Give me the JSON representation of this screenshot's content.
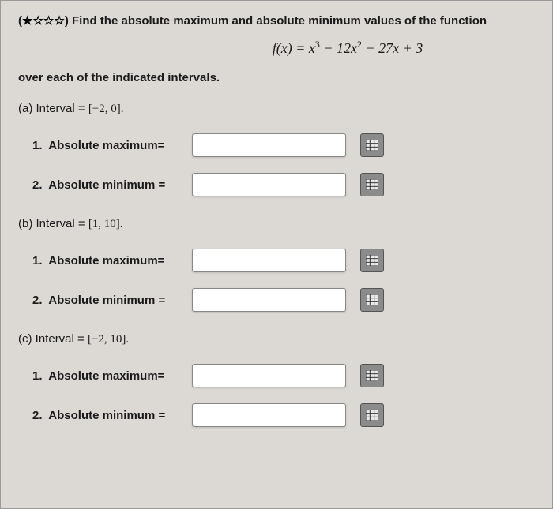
{
  "rating": {
    "filled": 1,
    "empty": 3
  },
  "prompt_text": "Find the absolute maximum and absolute minimum values of the function",
  "equation_html": "f(x) = x<sup>3</sup> − 12x<sup>2</sup> − 27x + 3",
  "instruction": "over each of the indicated intervals.",
  "parts": [
    {
      "letter": "(a)",
      "interval_label": "Interval =",
      "interval": "[−2, 0].",
      "items": [
        {
          "num": "1.",
          "label": "Absolute maximum=",
          "value": ""
        },
        {
          "num": "2.",
          "label": "Absolute minimum =",
          "value": ""
        }
      ]
    },
    {
      "letter": "(b)",
      "interval_label": "Interval =",
      "interval": "[1, 10].",
      "items": [
        {
          "num": "1.",
          "label": "Absolute maximum=",
          "value": ""
        },
        {
          "num": "2.",
          "label": "Absolute minimum =",
          "value": ""
        }
      ]
    },
    {
      "letter": "(c)",
      "interval_label": "Interval =",
      "interval": "[−2, 10].",
      "items": [
        {
          "num": "1.",
          "label": "Absolute maximum=",
          "value": ""
        },
        {
          "num": "2.",
          "label": "Absolute minimum =",
          "value": ""
        }
      ]
    }
  ],
  "labels": {
    "open": "(",
    "close": ")"
  },
  "style": {
    "background": "#dcd9d5",
    "input_bg": "#ffffff",
    "button_bg": "#8b8b8b",
    "font_family": "Arial",
    "math_font": "Times New Roman"
  }
}
